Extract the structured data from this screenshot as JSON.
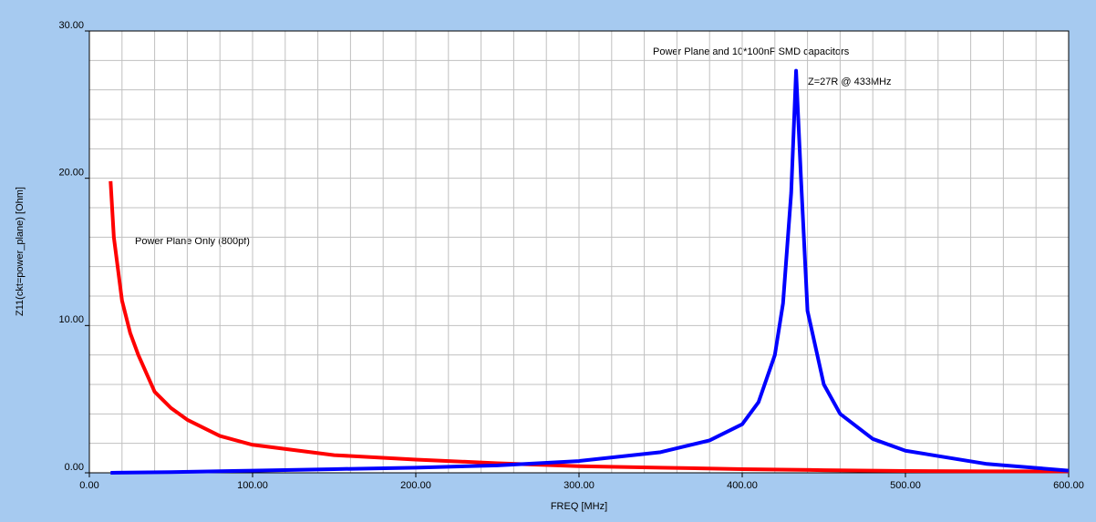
{
  "chart_data": {
    "type": "line",
    "xlabel": "FREQ [MHz]",
    "ylabel": "Z11(ckt=power_plane) [Ohm]",
    "annotations": [
      "Power Plane and 10*100nF SMD capacitors",
      "Z=27R @ 433MHz",
      "Power Plane Only (800pf)"
    ],
    "xlim": [
      0,
      600
    ],
    "xticks": [
      {
        "value": 0,
        "label": "0.00"
      },
      {
        "value": 100,
        "label": "100.00"
      },
      {
        "value": 200,
        "label": "200.00"
      },
      {
        "value": 300,
        "label": "300.00"
      },
      {
        "value": 400,
        "label": "400.00"
      },
      {
        "value": 500,
        "label": "500.00"
      },
      {
        "value": 600,
        "label": "600.00"
      }
    ],
    "ylim": [
      0,
      30
    ],
    "yticks": [
      {
        "value": 0,
        "label": "0.00"
      },
      {
        "value": 10,
        "label": "10.00"
      },
      {
        "value": 20,
        "label": "20.00"
      },
      {
        "value": 30,
        "label": "30.00"
      }
    ],
    "grid": true,
    "series": [
      {
        "color": "#ff0000",
        "x": [
          13,
          15,
          20,
          25,
          30,
          40,
          50,
          60,
          80,
          100,
          150,
          200,
          250,
          300,
          350,
          400,
          450,
          500,
          550,
          600
        ],
        "values": [
          19.8,
          16,
          11.7,
          9.5,
          8,
          5.5,
          4.4,
          3.6,
          2.5,
          1.9,
          1.2,
          0.9,
          0.65,
          0.45,
          0.35,
          0.25,
          0.18,
          0.12,
          0.1,
          0.1
        ]
      },
      {
        "color": "#0000ff",
        "x": [
          13,
          50,
          100,
          150,
          200,
          250,
          300,
          350,
          380,
          400,
          410,
          420,
          425,
          430,
          433,
          436,
          440,
          450,
          460,
          480,
          500,
          550,
          600
        ],
        "values": [
          0,
          0.05,
          0.15,
          0.25,
          0.35,
          0.5,
          0.8,
          1.4,
          2.2,
          3.3,
          4.8,
          8,
          11.5,
          19,
          27.3,
          20,
          11,
          6,
          4,
          2.3,
          1.5,
          0.6,
          0.15
        ]
      }
    ]
  }
}
